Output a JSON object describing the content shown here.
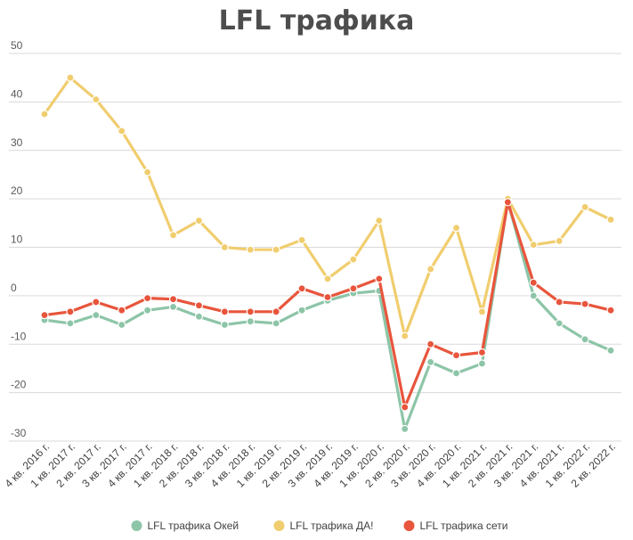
{
  "chart_data": {
    "type": "line",
    "title": "LFL трафика",
    "xlabel": "",
    "ylabel": "",
    "ylim": [
      -30,
      50
    ],
    "yticks": [
      "50",
      "40",
      "30",
      "20",
      "10",
      "0",
      "-10",
      "-20",
      "-30"
    ],
    "grid": true,
    "legend_position": "bottom",
    "categories": [
      "4 кв. 2016 г.",
      "1 кв. 2017 г.",
      "2 кв. 2017 г.",
      "3 кв. 2017 г.",
      "4 кв. 2017 г.",
      "1 кв. 2018 г.",
      "2 кв. 2018 г.",
      "3 кв. 2018 г.",
      "4 кв. 2018 г.",
      "1 кв. 2019 г.",
      "2 кв. 2019 г.",
      "3 кв. 2019 г.",
      "4 кв. 2019 г.",
      "1 кв. 2020 г.",
      "2 кв. 2020 г.",
      "3 кв. 2020 г.",
      "4 кв. 2020 г.",
      "1 кв. 2021 г.",
      "2 кв. 2021 г.",
      "3 кв. 2021 г.",
      "4 кв. 2021 г.",
      "1 кв. 2022 г.",
      "2 кв. 2022 г."
    ],
    "series": [
      {
        "name": "LFL трафика Окей",
        "color": "#8dc5a8",
        "values": [
          -5,
          -5.7,
          -4,
          -6,
          -3,
          -2.3,
          -4.3,
          -6,
          -5.3,
          -5.7,
          -3,
          -1,
          0.5,
          1,
          -27.5,
          -13.7,
          -16,
          -14,
          19.5,
          0,
          -5.7,
          -9,
          -11.3
        ]
      },
      {
        "name": "LFL трафика ДА!",
        "color": "#f0cd6e",
        "values": [
          37.5,
          45,
          40.5,
          34,
          25.5,
          12.5,
          15.5,
          10,
          9.5,
          9.5,
          11.5,
          3.5,
          7.5,
          15.5,
          -8.3,
          5.5,
          14,
          -3.3,
          20,
          10.5,
          11.3,
          18.3,
          15.7
        ]
      },
      {
        "name": "LFL трафика сети",
        "color": "#e8553c",
        "values": [
          -4,
          -3.3,
          -1.3,
          -3,
          -0.5,
          -0.7,
          -2,
          -3.3,
          -3.3,
          -3.3,
          1.5,
          -0.3,
          1.5,
          3.5,
          -23,
          -10,
          -12.3,
          -11.7,
          19.3,
          2.7,
          -1.3,
          -1.7,
          -3
        ]
      }
    ]
  }
}
